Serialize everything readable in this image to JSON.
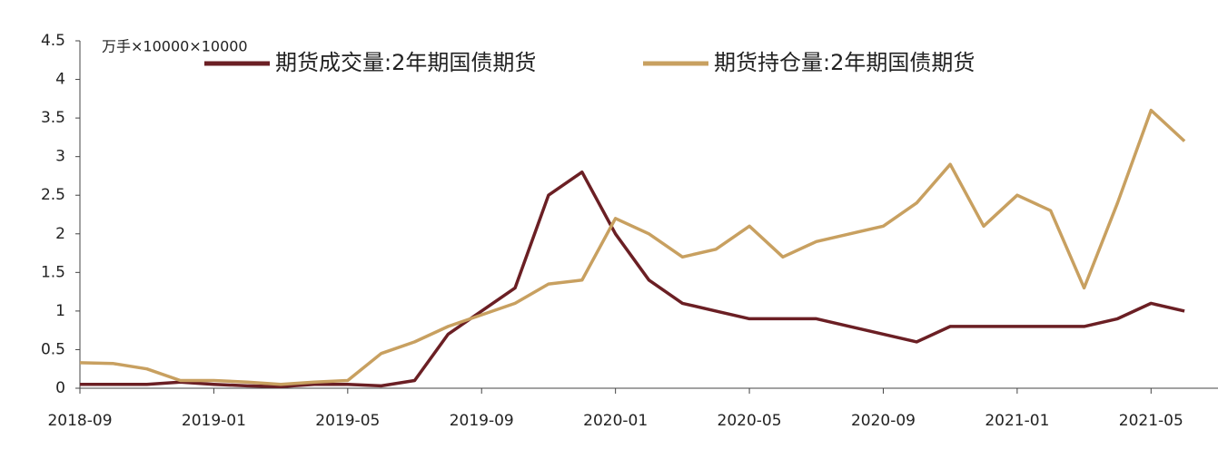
{
  "chart_data": {
    "type": "line",
    "y_label": "万手×10000×10000",
    "x": [
      "2018-09",
      "2018-10",
      "2018-11",
      "2018-12",
      "2019-01",
      "2019-02",
      "2019-03",
      "2019-04",
      "2019-05",
      "2019-06",
      "2019-07",
      "2019-08",
      "2019-09",
      "2019-10",
      "2019-11",
      "2019-12",
      "2020-01",
      "2020-02",
      "2020-03",
      "2020-04",
      "2020-05",
      "2020-06",
      "2020-07",
      "2020-08",
      "2020-09",
      "2020-10",
      "2020-11",
      "2020-12",
      "2021-01",
      "2021-02",
      "2021-03",
      "2021-04",
      "2021-05",
      "2021-06"
    ],
    "series": [
      {
        "name": "期货成交量:2年期国债期货",
        "color": "#6b1f24",
        "values": [
          0.05,
          0.05,
          0.05,
          0.08,
          0.05,
          0.03,
          0.02,
          0.05,
          0.05,
          0.03,
          0.1,
          0.7,
          1.0,
          1.3,
          2.5,
          2.8,
          2.0,
          1.4,
          1.1,
          1.0,
          0.9,
          0.9,
          0.9,
          0.8,
          0.7,
          0.6,
          0.8,
          0.8,
          0.8,
          0.8,
          0.8,
          0.9,
          1.1,
          1.0
        ]
      },
      {
        "name": "期货持仓量:2年期国债期货",
        "color": "#c8a060",
        "values": [
          0.33,
          0.32,
          0.25,
          0.1,
          0.1,
          0.08,
          0.05,
          0.08,
          0.1,
          0.45,
          0.6,
          0.8,
          0.95,
          1.1,
          1.35,
          1.4,
          2.2,
          2.0,
          1.7,
          1.8,
          2.1,
          1.7,
          1.9,
          2.0,
          2.1,
          2.4,
          2.9,
          2.1,
          2.5,
          2.3,
          1.3,
          2.4,
          3.6,
          3.2
        ]
      }
    ],
    "xlim": [
      "2018-09",
      "2021-07"
    ],
    "xticks": [
      "2018-09",
      "2019-01",
      "2019-05",
      "2019-09",
      "2020-01",
      "2020-05",
      "2020-09",
      "2021-01",
      "2021-05"
    ],
    "ylim": [
      0,
      4.5
    ],
    "yticks": [
      0,
      0.5,
      1,
      1.5,
      2,
      2.5,
      3,
      3.5,
      4,
      4.5
    ],
    "legend": "top"
  }
}
